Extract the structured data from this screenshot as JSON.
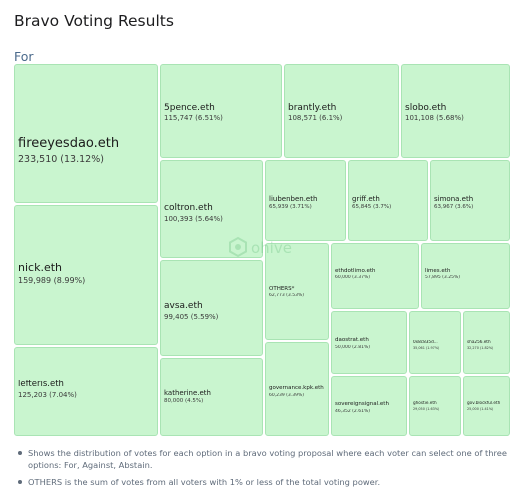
{
  "title": "Bravo Voting Results",
  "option_label": "For",
  "watermark": "ohive",
  "notes": [
    "Shows the distribution of votes for each option in a bravo voting proposal where each voter can select one of three options: For, Against, Abstain.",
    "OTHERS is the sum of votes from all voters with 1% or less of the total voting power."
  ],
  "chart_data": {
    "type": "treemap",
    "title": "For",
    "items": [
      {
        "name": "fireeyesdao.eth",
        "value": 233510,
        "label": "233,510 (13.12%)"
      },
      {
        "name": "nick.eth",
        "value": 159989,
        "label": "159,989 (8.99%)"
      },
      {
        "name": "lefteris.eth",
        "value": 125203,
        "label": "125,203 (7.04%)"
      },
      {
        "name": "5pence.eth",
        "value": 115747,
        "label": "115,747 (6.51%)"
      },
      {
        "name": "brantly.eth",
        "value": 108571,
        "label": "108,571 (6.1%)"
      },
      {
        "name": "slobo.eth",
        "value": 101108,
        "label": "101,108 (5.68%)"
      },
      {
        "name": "coltron.eth",
        "value": 100393,
        "label": "100,393 (5.64%)"
      },
      {
        "name": "avsa.eth",
        "value": 99405,
        "label": "99,405 (5.59%)"
      },
      {
        "name": "katherine.eth",
        "value": 80000,
        "label": "80,000 (4.5%)"
      },
      {
        "name": "liubenben.eth",
        "value": 65939,
        "label": "65,939 (3.71%)"
      },
      {
        "name": "griff.eth",
        "value": 65845,
        "label": "65,845 (3.7%)"
      },
      {
        "name": "simona.eth",
        "value": 63967,
        "label": "63,967 (3.6%)"
      },
      {
        "name": "OTHERS*",
        "value": 62773,
        "label": "62,773 (3.53%)"
      },
      {
        "name": "ethdotlimo.eth",
        "value": 60000,
        "label": "60,000 (3.37%)"
      },
      {
        "name": "limes.eth",
        "value": 57895,
        "label": "57,895 (3.25%)"
      },
      {
        "name": "governance.kpk.eth",
        "value": 60239,
        "label": "60,239 (3.39%)"
      },
      {
        "name": "daostrat.eth",
        "value": 50000,
        "label": "50,000 (2.81%)"
      },
      {
        "name": "0x8c835d...",
        "value": 35061,
        "label": "35,061 (1.97%)"
      },
      {
        "name": "sha256.eth",
        "value": 32270,
        "label": "32,270 (1.82%)"
      },
      {
        "name": "sovereignsignal.eth",
        "value": 46352,
        "label": "46,352 (2.61%)"
      },
      {
        "name": "ghostie.eth",
        "value": 29050,
        "label": "29,050 (1.63%)"
      },
      {
        "name": "gov.blockful.eth",
        "value": 25000,
        "label": "25,000 (1.41%)"
      }
    ]
  }
}
